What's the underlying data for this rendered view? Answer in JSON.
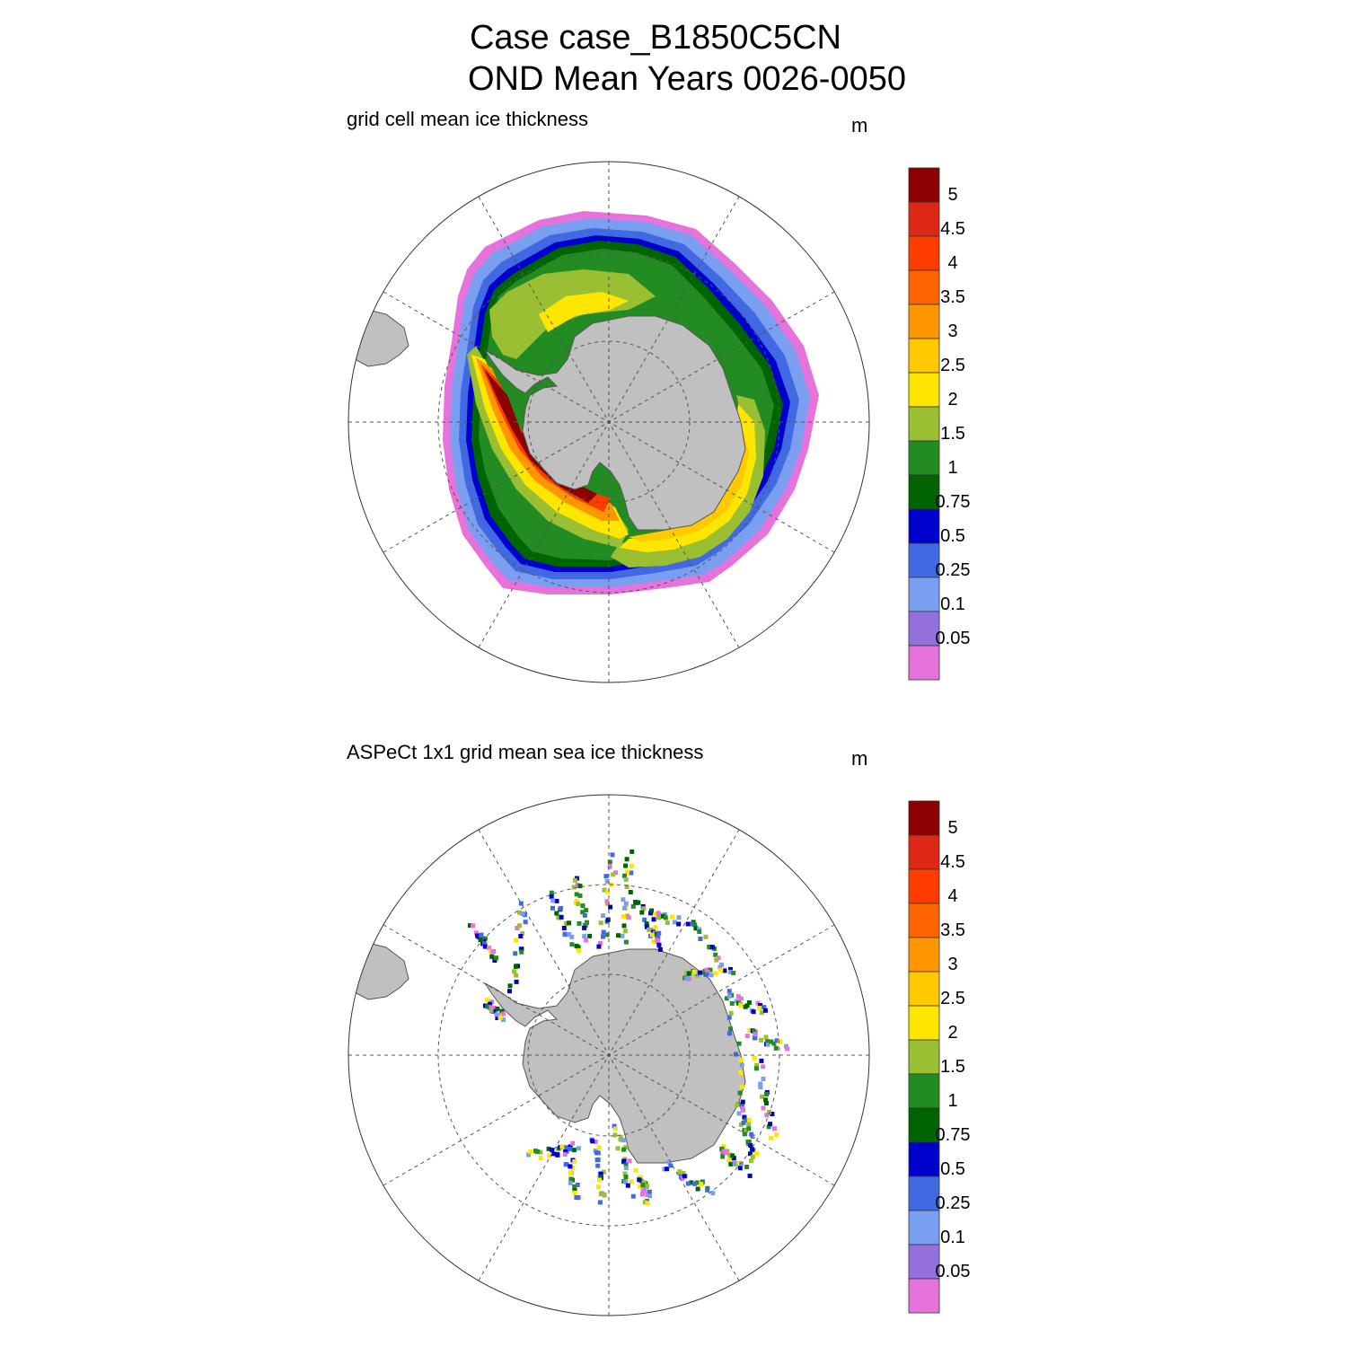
{
  "title_line1": "Case case_B1850C5CN",
  "title_line2": "OND Mean   Years 0026-0050",
  "panels": [
    {
      "title": "grid cell mean ice thickness",
      "units": "m"
    },
    {
      "title": "ASPeCt 1x1 grid mean sea ice thickness",
      "units": "m"
    }
  ],
  "colorbar": {
    "labels": [
      "5",
      "4.5",
      "4",
      "3.5",
      "3",
      "2.5",
      "2",
      "1.5",
      "1",
      "0.75",
      "0.5",
      "0.25",
      "0.1",
      "0.05"
    ],
    "colors": [
      "#8b0000",
      "#dc2814",
      "#ff3c00",
      "#ff6400",
      "#ff9600",
      "#ffc800",
      "#ffe600",
      "#9abf32",
      "#228b22",
      "#006400",
      "#0000cd",
      "#4169e1",
      "#7b9ff0",
      "#9370db",
      "#e673dc"
    ]
  },
  "colors": {
    "land": "#c0c0c0",
    "coast": "#666666",
    "grid": "#555555"
  }
}
